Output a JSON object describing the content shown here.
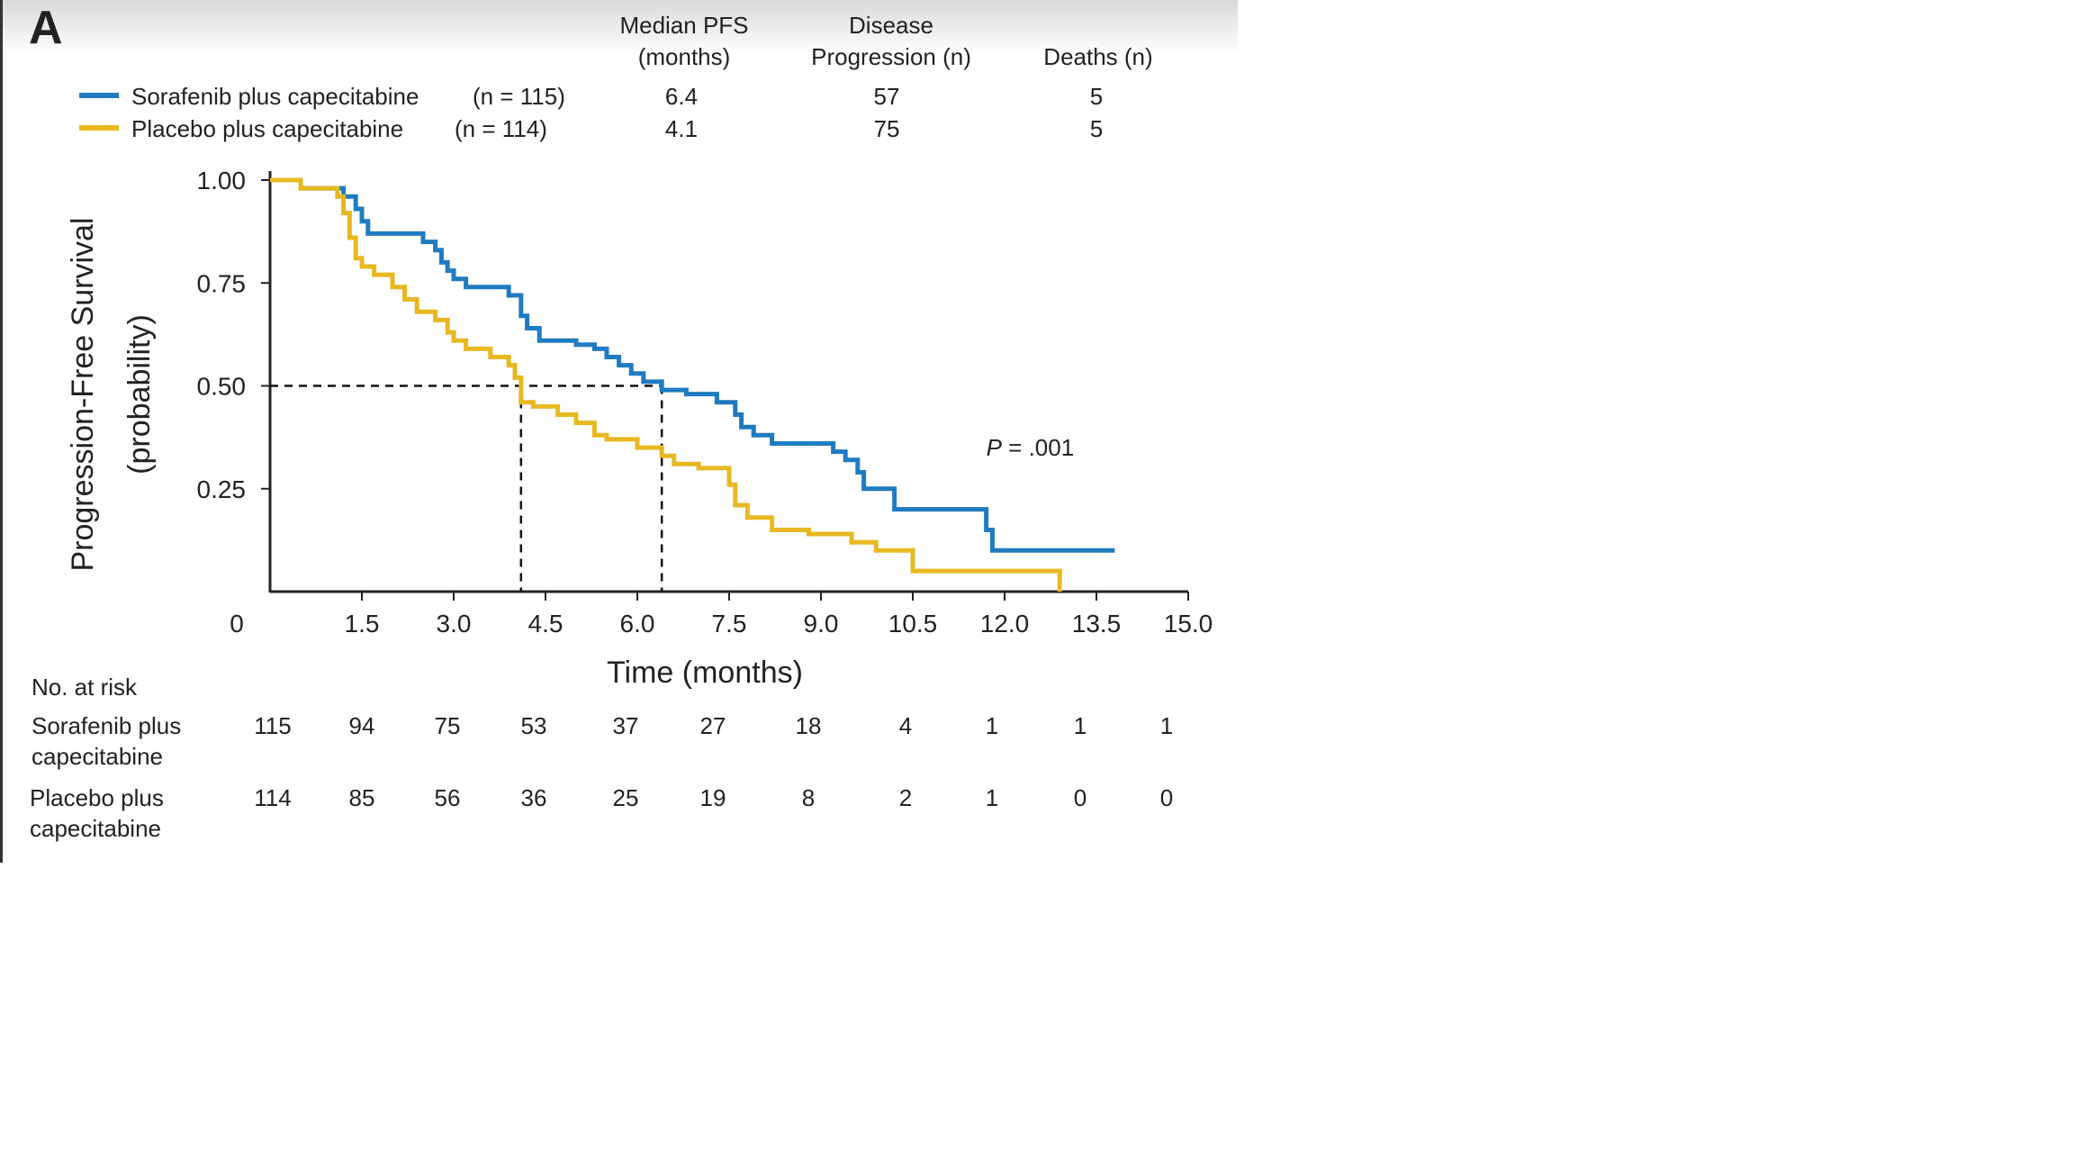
{
  "panel_label": "A",
  "summary_table": {
    "headers": {
      "median_pfs": [
        "Median PFS",
        "(months)"
      ],
      "progression": [
        "Disease",
        "Progression (n)"
      ],
      "deaths": [
        "Deaths (n)"
      ]
    },
    "rows": [
      {
        "arm": "Sorafenib plus capecitabine",
        "n_label": "(n = 115)",
        "median_pfs": "6.4",
        "progression": "57",
        "deaths": "5"
      },
      {
        "arm": "Placebo plus capecitabine",
        "n_label": "(n = 114)",
        "median_pfs": "4.1",
        "progression": "75",
        "deaths": "5"
      }
    ]
  },
  "chart_data": {
    "type": "line",
    "title": "",
    "xlabel": "Time (months)",
    "ylabel": [
      "Progression-Free Survival",
      "(probability)"
    ],
    "xlim": [
      0,
      15
    ],
    "ylim": [
      0,
      1
    ],
    "x_ticks": [
      "0",
      "1.5",
      "3.0",
      "4.5",
      "6.0",
      "7.5",
      "9.0",
      "10.5",
      "12.0",
      "13.5",
      "15.0"
    ],
    "x_tick_values": [
      0,
      1.5,
      3,
      4.5,
      6,
      7.5,
      9,
      10.5,
      12,
      13.5,
      15
    ],
    "y_ticks": [
      "1.00",
      "0.75",
      "0.50",
      "0.25"
    ],
    "y_tick_values": [
      1,
      0.75,
      0.5,
      0.25
    ],
    "annotation": {
      "italic": "P",
      "rest": " = .001",
      "x": 11.7,
      "y": 0.33
    },
    "median_line": {
      "y": 0.5,
      "x_values": [
        4.1,
        6.4
      ]
    },
    "series": [
      {
        "name": "Sorafenib plus capecitabine",
        "color": "#1f7bc1",
        "points": [
          [
            0,
            1.0
          ],
          [
            0.5,
            1.0
          ],
          [
            0.5,
            0.98
          ],
          [
            1.2,
            0.98
          ],
          [
            1.2,
            0.96
          ],
          [
            1.4,
            0.96
          ],
          [
            1.4,
            0.93
          ],
          [
            1.5,
            0.93
          ],
          [
            1.5,
            0.9
          ],
          [
            1.6,
            0.9
          ],
          [
            1.6,
            0.87
          ],
          [
            2.5,
            0.87
          ],
          [
            2.5,
            0.85
          ],
          [
            2.7,
            0.85
          ],
          [
            2.7,
            0.83
          ],
          [
            2.8,
            0.83
          ],
          [
            2.8,
            0.8
          ],
          [
            2.9,
            0.8
          ],
          [
            2.9,
            0.78
          ],
          [
            3.0,
            0.78
          ],
          [
            3.0,
            0.76
          ],
          [
            3.2,
            0.76
          ],
          [
            3.2,
            0.74
          ],
          [
            3.9,
            0.74
          ],
          [
            3.9,
            0.72
          ],
          [
            4.1,
            0.72
          ],
          [
            4.1,
            0.67
          ],
          [
            4.2,
            0.67
          ],
          [
            4.2,
            0.64
          ],
          [
            4.4,
            0.64
          ],
          [
            4.4,
            0.61
          ],
          [
            5.0,
            0.61
          ],
          [
            5.0,
            0.6
          ],
          [
            5.3,
            0.6
          ],
          [
            5.3,
            0.59
          ],
          [
            5.5,
            0.59
          ],
          [
            5.5,
            0.57
          ],
          [
            5.7,
            0.57
          ],
          [
            5.7,
            0.55
          ],
          [
            5.9,
            0.55
          ],
          [
            5.9,
            0.53
          ],
          [
            6.1,
            0.53
          ],
          [
            6.1,
            0.51
          ],
          [
            6.4,
            0.51
          ],
          [
            6.4,
            0.49
          ],
          [
            6.8,
            0.49
          ],
          [
            6.8,
            0.48
          ],
          [
            7.3,
            0.48
          ],
          [
            7.3,
            0.46
          ],
          [
            7.6,
            0.46
          ],
          [
            7.6,
            0.43
          ],
          [
            7.7,
            0.43
          ],
          [
            7.7,
            0.4
          ],
          [
            7.9,
            0.4
          ],
          [
            7.9,
            0.38
          ],
          [
            8.2,
            0.38
          ],
          [
            8.2,
            0.36
          ],
          [
            9.2,
            0.36
          ],
          [
            9.2,
            0.34
          ],
          [
            9.4,
            0.34
          ],
          [
            9.4,
            0.32
          ],
          [
            9.6,
            0.32
          ],
          [
            9.6,
            0.29
          ],
          [
            9.7,
            0.29
          ],
          [
            9.7,
            0.25
          ],
          [
            10.2,
            0.25
          ],
          [
            10.2,
            0.2
          ],
          [
            11.7,
            0.2
          ],
          [
            11.7,
            0.15
          ],
          [
            11.8,
            0.15
          ],
          [
            11.8,
            0.1
          ],
          [
            13.8,
            0.1
          ]
        ]
      },
      {
        "name": "Placebo plus capecitabine",
        "color": "#e8b821",
        "points": [
          [
            0,
            1.0
          ],
          [
            0.5,
            1.0
          ],
          [
            0.5,
            0.98
          ],
          [
            1.1,
            0.98
          ],
          [
            1.1,
            0.96
          ],
          [
            1.2,
            0.96
          ],
          [
            1.2,
            0.92
          ],
          [
            1.3,
            0.92
          ],
          [
            1.3,
            0.86
          ],
          [
            1.4,
            0.86
          ],
          [
            1.4,
            0.81
          ],
          [
            1.5,
            0.81
          ],
          [
            1.5,
            0.79
          ],
          [
            1.7,
            0.79
          ],
          [
            1.7,
            0.77
          ],
          [
            2.0,
            0.77
          ],
          [
            2.0,
            0.74
          ],
          [
            2.2,
            0.74
          ],
          [
            2.2,
            0.71
          ],
          [
            2.4,
            0.71
          ],
          [
            2.4,
            0.68
          ],
          [
            2.7,
            0.68
          ],
          [
            2.7,
            0.66
          ],
          [
            2.9,
            0.66
          ],
          [
            2.9,
            0.63
          ],
          [
            3.0,
            0.63
          ],
          [
            3.0,
            0.61
          ],
          [
            3.2,
            0.61
          ],
          [
            3.2,
            0.59
          ],
          [
            3.6,
            0.59
          ],
          [
            3.6,
            0.57
          ],
          [
            3.9,
            0.57
          ],
          [
            3.9,
            0.55
          ],
          [
            4.0,
            0.55
          ],
          [
            4.0,
            0.52
          ],
          [
            4.1,
            0.52
          ],
          [
            4.1,
            0.46
          ],
          [
            4.3,
            0.46
          ],
          [
            4.3,
            0.45
          ],
          [
            4.7,
            0.45
          ],
          [
            4.7,
            0.43
          ],
          [
            5.0,
            0.43
          ],
          [
            5.0,
            0.41
          ],
          [
            5.3,
            0.41
          ],
          [
            5.3,
            0.38
          ],
          [
            5.5,
            0.38
          ],
          [
            5.5,
            0.37
          ],
          [
            6.0,
            0.37
          ],
          [
            6.0,
            0.35
          ],
          [
            6.4,
            0.35
          ],
          [
            6.4,
            0.33
          ],
          [
            6.6,
            0.33
          ],
          [
            6.6,
            0.31
          ],
          [
            7.0,
            0.31
          ],
          [
            7.0,
            0.3
          ],
          [
            7.5,
            0.3
          ],
          [
            7.5,
            0.26
          ],
          [
            7.6,
            0.26
          ],
          [
            7.6,
            0.21
          ],
          [
            7.8,
            0.21
          ],
          [
            7.8,
            0.18
          ],
          [
            8.2,
            0.18
          ],
          [
            8.2,
            0.15
          ],
          [
            8.8,
            0.15
          ],
          [
            8.8,
            0.14
          ],
          [
            9.5,
            0.14
          ],
          [
            9.5,
            0.12
          ],
          [
            9.9,
            0.12
          ],
          [
            9.9,
            0.1
          ],
          [
            10.5,
            0.1
          ],
          [
            10.5,
            0.05
          ],
          [
            12.9,
            0.05
          ],
          [
            12.9,
            0.0
          ]
        ]
      }
    ]
  },
  "risk_table": {
    "title": "No. at risk",
    "rows": [
      {
        "label": [
          "Sorafenib plus",
          "capecitabine"
        ],
        "values": [
          "115",
          "94",
          "75",
          "53",
          "37",
          "27",
          "18",
          "4",
          "1",
          "1",
          "1"
        ]
      },
      {
        "label": [
          "Placebo plus",
          "capecitabine"
        ],
        "values": [
          "114",
          "85",
          "56",
          "36",
          "25",
          "19",
          "8",
          "2",
          "1",
          "0",
          "0"
        ]
      }
    ]
  }
}
